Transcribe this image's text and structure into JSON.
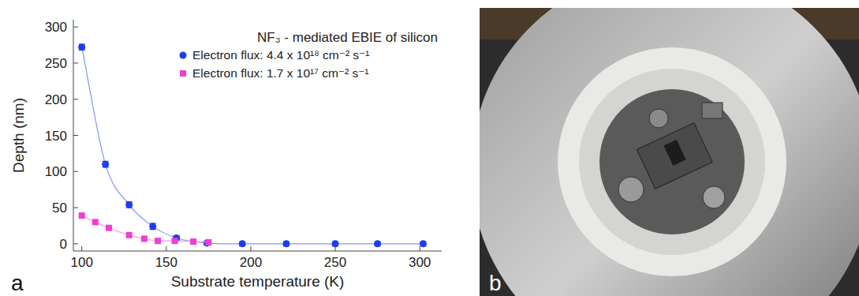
{
  "chart_data": {
    "type": "scatter",
    "legend_title": "NF₃ - mediated EBIE of silicon",
    "x_label": "Substrate temperature (K)",
    "y_label": "Depth (nm)",
    "xlim": [
      95,
      313
    ],
    "xticks": [
      100,
      150,
      200,
      250,
      300
    ],
    "ylim": [
      -10,
      310
    ],
    "yticks": [
      0,
      50,
      100,
      150,
      200,
      250,
      300
    ],
    "grid": false,
    "legend": "top-right",
    "series": [
      {
        "name": "Electron flux: 4.4 x 10¹⁸ cm⁻² s⁻¹",
        "color": "#1f3cf0",
        "marker": "circle",
        "line_style": "solid",
        "x": [
          100,
          114,
          128,
          142,
          156,
          174,
          195,
          221,
          250,
          275,
          302
        ],
        "values": [
          272,
          110,
          54,
          24,
          8,
          1,
          0,
          0,
          0,
          0,
          0
        ],
        "errors": [
          4,
          4,
          4,
          4,
          3,
          2,
          3,
          3,
          3,
          3,
          3
        ]
      },
      {
        "name": "Electron flux: 1.7 x 10¹⁷ cm⁻² s⁻¹",
        "color": "#ee3fd0",
        "marker": "square",
        "line_style": "solid",
        "x": [
          100,
          108,
          116,
          128,
          137,
          145,
          155,
          166,
          175
        ],
        "values": [
          39,
          30,
          22,
          12,
          7,
          4,
          4,
          3,
          2
        ]
      }
    ]
  },
  "panel_labels": [
    "a",
    "b"
  ]
}
